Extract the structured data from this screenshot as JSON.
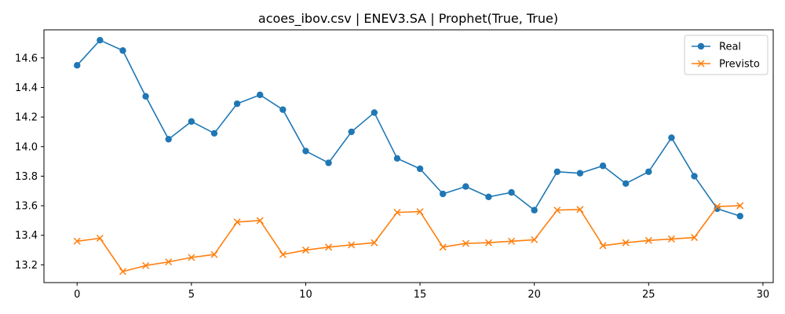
{
  "chart_data": {
    "type": "line",
    "title": "acoes_ibov.csv | ENEV3.SA | Prophet(True, True)",
    "xlabel": "",
    "ylabel": "",
    "xlim": [
      -1.45,
      30.45
    ],
    "ylim": [
      13.08,
      14.79
    ],
    "xticks": [
      0,
      5,
      10,
      15,
      20,
      25,
      30
    ],
    "yticks": [
      13.2,
      13.4,
      13.6,
      13.8,
      14.0,
      14.2,
      14.4,
      14.6
    ],
    "grid": false,
    "legend": "top-right",
    "x": [
      0,
      1,
      2,
      3,
      4,
      5,
      6,
      7,
      8,
      9,
      10,
      11,
      12,
      13,
      14,
      15,
      16,
      17,
      18,
      19,
      20,
      21,
      22,
      23,
      24,
      25,
      26,
      27,
      28,
      29
    ],
    "series": [
      {
        "name": "Real",
        "color": "#1f77b4",
        "marker": "circle",
        "values": [
          14.55,
          14.72,
          14.65,
          14.34,
          14.05,
          14.17,
          14.09,
          14.29,
          14.35,
          14.25,
          13.97,
          13.89,
          14.1,
          14.23,
          13.92,
          13.85,
          13.68,
          13.73,
          13.66,
          13.69,
          13.57,
          13.83,
          13.82,
          13.87,
          13.75,
          13.83,
          14.06,
          13.8,
          13.58,
          13.53
        ]
      },
      {
        "name": "Previsto",
        "color": "#ff7f0e",
        "marker": "x",
        "values": [
          13.36,
          13.38,
          13.155,
          13.195,
          13.22,
          13.25,
          13.27,
          13.49,
          13.5,
          13.27,
          13.3,
          13.32,
          13.335,
          13.35,
          13.555,
          13.56,
          13.32,
          13.345,
          13.35,
          13.36,
          13.37,
          13.57,
          13.575,
          13.33,
          13.35,
          13.365,
          13.375,
          13.385,
          13.595,
          13.6
        ]
      }
    ]
  }
}
